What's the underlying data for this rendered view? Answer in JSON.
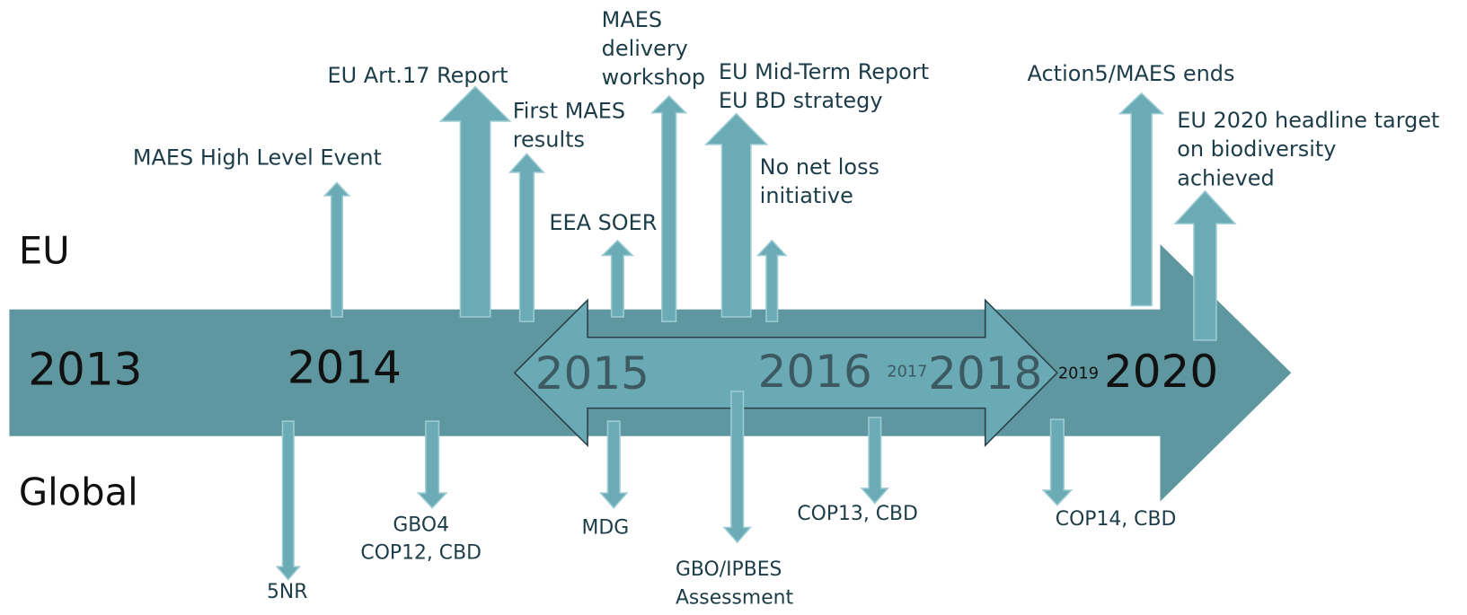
{
  "rows": [
    "EU",
    "Global"
  ],
  "years": [
    "2013",
    "2014",
    "2015",
    "2016",
    "2017",
    "2018",
    "2019",
    "2020"
  ],
  "eu_events": [
    {
      "lines": [
        "MAES High Level Event"
      ]
    },
    {
      "lines": [
        "EU Art.17 Report"
      ]
    },
    {
      "lines": [
        "First MAES",
        "results"
      ]
    },
    {
      "lines": [
        "EEA SOER"
      ]
    },
    {
      "lines": [
        "MAES",
        "delivery",
        "workshop"
      ]
    },
    {
      "lines": [
        "EU Mid-Term Report",
        "EU BD strategy"
      ]
    },
    {
      "lines": [
        "No net loss",
        "initiative"
      ]
    },
    {
      "lines": [
        "Action5/MAES ends"
      ]
    },
    {
      "lines": [
        "EU 2020 headline target",
        "on biodiversity",
        "achieved"
      ]
    }
  ],
  "global_events": [
    {
      "lines": [
        "5NR"
      ]
    },
    {
      "lines": [
        "GBO4",
        "COP12, CBD"
      ]
    },
    {
      "lines": [
        "MDG"
      ]
    },
    {
      "lines": [
        "GBO/IPBES",
        "Assessment"
      ]
    },
    {
      "lines": [
        "COP13, CBD"
      ]
    },
    {
      "lines": [
        "COP14, CBD"
      ]
    }
  ]
}
